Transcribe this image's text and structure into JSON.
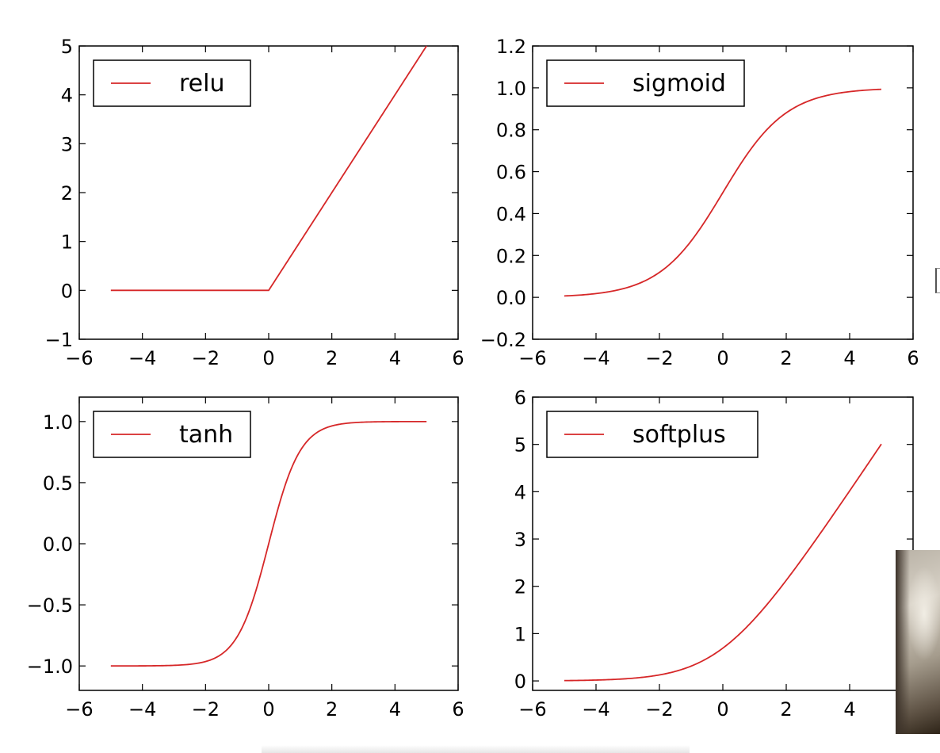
{
  "line_color": "#d62728",
  "chart_data": [
    {
      "type": "line",
      "function": "relu",
      "series": [
        {
          "name": "relu",
          "x_range": [
            -5,
            5
          ],
          "samples": 201
        }
      ],
      "xlim": [
        -6,
        6
      ],
      "ylim": [
        -1,
        5
      ],
      "xticks": [
        -6,
        -4,
        -2,
        0,
        2,
        4,
        6
      ],
      "xtick_labels": [
        "−6",
        "−4",
        "−2",
        "0",
        "2",
        "4",
        "6"
      ],
      "yticks": [
        -1,
        0,
        1,
        2,
        3,
        4,
        5
      ],
      "ytick_labels": [
        "−1",
        "0",
        "1",
        "2",
        "3",
        "4",
        "5"
      ],
      "legend_position": "upper-left",
      "grid": false
    },
    {
      "type": "line",
      "function": "sigmoid",
      "series": [
        {
          "name": "sigmoid",
          "x_range": [
            -5,
            5
          ],
          "samples": 201
        }
      ],
      "xlim": [
        -6,
        6
      ],
      "ylim": [
        -0.2,
        1.2
      ],
      "xticks": [
        -6,
        -4,
        -2,
        0,
        2,
        4,
        6
      ],
      "xtick_labels": [
        "−6",
        "−4",
        "−2",
        "0",
        "2",
        "4",
        "6"
      ],
      "yticks": [
        -0.2,
        0.0,
        0.2,
        0.4,
        0.6,
        0.8,
        1.0,
        1.2
      ],
      "ytick_labels": [
        "−0.2",
        "0.0",
        "0.2",
        "0.4",
        "0.6",
        "0.8",
        "1.0",
        "1.2"
      ],
      "legend_position": "upper-left",
      "grid": false
    },
    {
      "type": "line",
      "function": "tanh",
      "series": [
        {
          "name": "tanh",
          "x_range": [
            -5,
            5
          ],
          "samples": 201
        }
      ],
      "xlim": [
        -6,
        6
      ],
      "ylim": [
        -1.2,
        1.2
      ],
      "xticks": [
        -6,
        -4,
        -2,
        0,
        2,
        4,
        6
      ],
      "xtick_labels": [
        "−6",
        "−4",
        "−2",
        "0",
        "2",
        "4",
        "6"
      ],
      "yticks": [
        -1.0,
        -0.5,
        0.0,
        0.5,
        1.0
      ],
      "ytick_labels": [
        "−1.0",
        "−0.5",
        "0.0",
        "0.5",
        "1.0"
      ],
      "legend_position": "upper-left",
      "grid": false
    },
    {
      "type": "line",
      "function": "softplus",
      "series": [
        {
          "name": "softplus",
          "x_range": [
            -5,
            5
          ],
          "samples": 201
        }
      ],
      "xlim": [
        -6,
        6
      ],
      "ylim": [
        -0.2,
        6
      ],
      "xticks": [
        -6,
        -4,
        -2,
        0,
        2,
        4
      ],
      "xtick_labels": [
        "−6",
        "−4",
        "−2",
        "0",
        "2",
        "4"
      ],
      "yticks": [
        0,
        1,
        2,
        3,
        4,
        5,
        6
      ],
      "ytick_labels": [
        "0",
        "1",
        "2",
        "3",
        "4",
        "5",
        "6"
      ],
      "legend_position": "upper-left",
      "grid": false
    }
  ]
}
